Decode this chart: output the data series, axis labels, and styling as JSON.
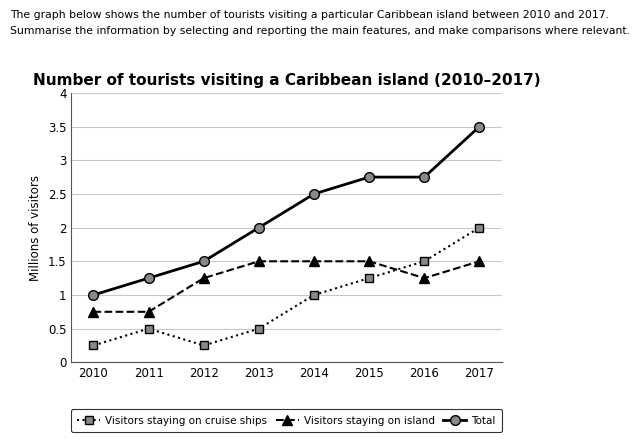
{
  "title": "Number of tourists visiting a Caribbean island (2010–2017)",
  "header_line1": "The graph below shows the number of tourists visiting a particular Caribbean island between 2010 and 2017.",
  "header_line2": "Summarise the information by selecting and reporting the main features, and make comparisons where relevant.",
  "ylabel": "Millions of visitors",
  "years": [
    2010,
    2011,
    2012,
    2013,
    2014,
    2015,
    2016,
    2017
  ],
  "cruise": [
    0.25,
    0.5,
    0.25,
    0.5,
    1.0,
    1.25,
    1.5,
    2.0
  ],
  "island": [
    0.75,
    0.75,
    1.25,
    1.5,
    1.5,
    1.5,
    1.25,
    1.5
  ],
  "total": [
    1.0,
    1.25,
    1.5,
    2.0,
    2.5,
    2.75,
    2.75,
    3.5
  ],
  "ylim": [
    0,
    4
  ],
  "yticks": [
    0,
    0.5,
    1.0,
    1.5,
    2.0,
    2.5,
    3.0,
    3.5,
    4.0
  ],
  "grid_color": "#c8c8c8",
  "line_color": "#000000",
  "marker_gray": "#888888",
  "title_fontsize": 11,
  "header_fontsize": 7.8,
  "label_fontsize": 8.5,
  "tick_fontsize": 8.5,
  "legend_cruise": "Visitors staying on cruise ships",
  "legend_island": "Visitors staying on island",
  "legend_total": "Total"
}
